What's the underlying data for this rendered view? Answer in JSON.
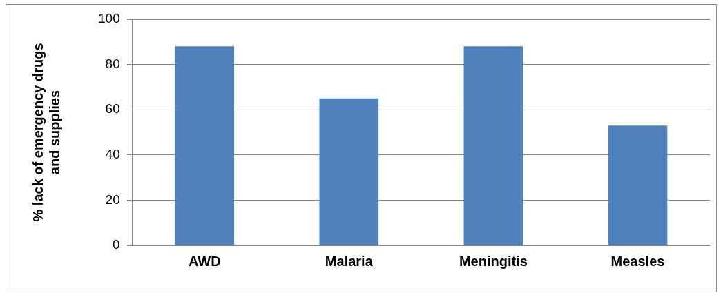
{
  "chart_data": {
    "type": "bar",
    "ylabel": "% lack of emergency drugs and supplies",
    "categories": [
      "AWD",
      "Malaria",
      "Meningitis",
      "Measles"
    ],
    "values": [
      88,
      65,
      88,
      53
    ],
    "color": "#4f81bd",
    "ylim": [
      0,
      100
    ],
    "yticks": [
      0,
      20,
      40,
      60,
      80,
      100
    ],
    "grid": "y",
    "legend": false
  }
}
